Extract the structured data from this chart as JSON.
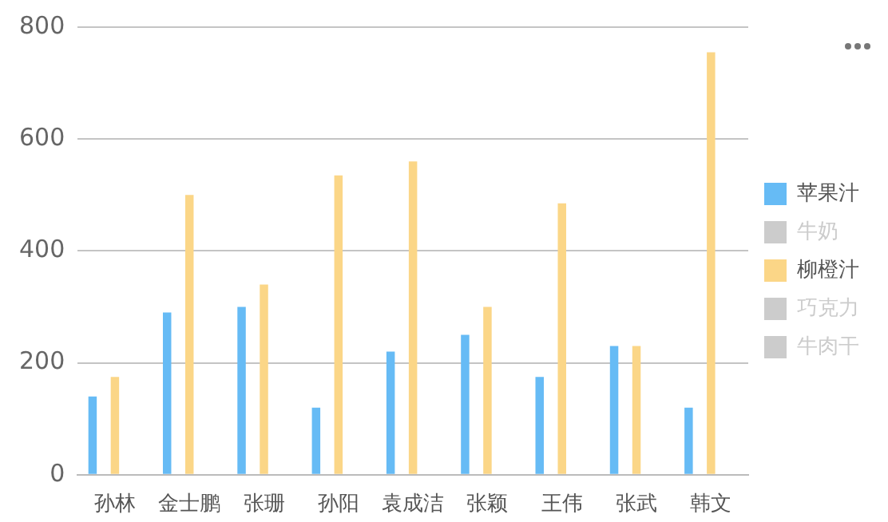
{
  "chart_data": {
    "type": "bar",
    "categories": [
      "孙林",
      "金士鹏",
      "张珊",
      "孙阳",
      "袁成洁",
      "张颖",
      "王伟",
      "张武",
      "韩文"
    ],
    "series": [
      {
        "name": "苹果汁",
        "color": "#66bbf5",
        "values": [
          140,
          290,
          300,
          120,
          220,
          250,
          175,
          230,
          120
        ]
      },
      {
        "name": "牛奶",
        "color": "#cccccc",
        "values": [
          null,
          null,
          null,
          null,
          null,
          null,
          null,
          null,
          null
        ]
      },
      {
        "name": "柳橙汁",
        "color": "#fbd687",
        "values": [
          175,
          500,
          340,
          535,
          560,
          300,
          485,
          230,
          755
        ]
      },
      {
        "name": "巧克力",
        "color": "#cccccc",
        "values": [
          null,
          null,
          null,
          null,
          null,
          null,
          null,
          null,
          null
        ]
      },
      {
        "name": "牛肉干",
        "color": "#cccccc",
        "values": [
          null,
          null,
          null,
          null,
          null,
          null,
          null,
          null,
          null
        ]
      }
    ],
    "ylim": [
      0,
      800
    ],
    "yticks": [
      0,
      200,
      400,
      600,
      800
    ],
    "grid": "y",
    "legend": "right"
  }
}
